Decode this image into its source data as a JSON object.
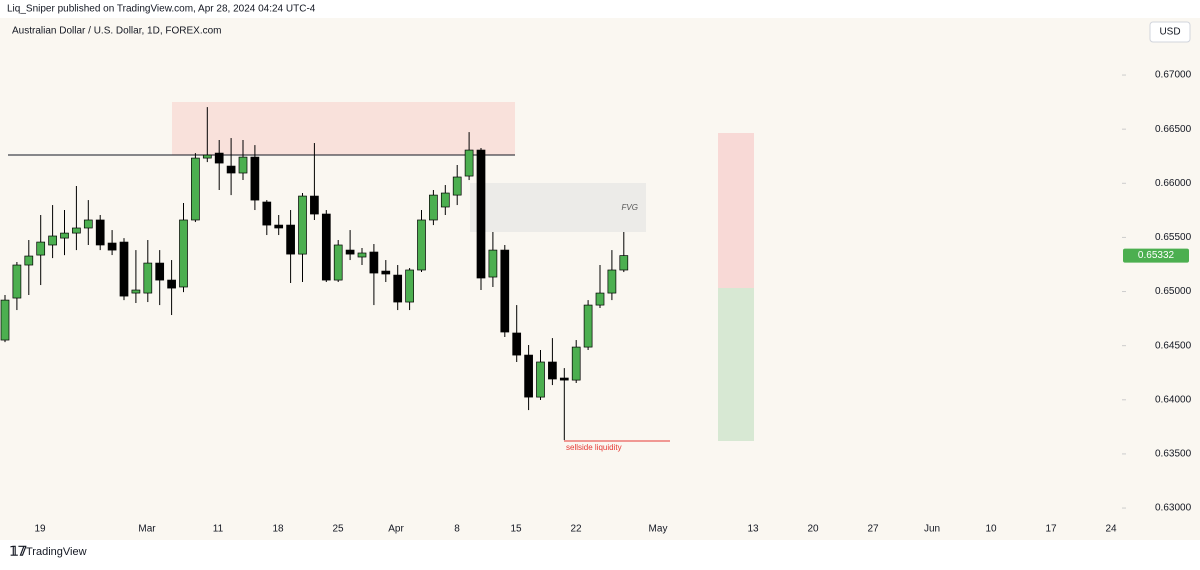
{
  "header": {
    "publisher": "Liq_Sniper published on TradingView.com, Apr 28, 2024 04:24 UTC-4",
    "currency": "USD",
    "brand": "TradingView"
  },
  "chart_data": {
    "type": "candlestick",
    "title": "Australian Dollar / U.S. Dollar, 1D, FOREX.com",
    "open": [
      0.64552,
      0.6494,
      0.65245,
      0.65337,
      0.6543,
      0.65494,
      0.6554,
      0.65587,
      0.65661,
      0.65448,
      0.65457,
      0.64986,
      0.64986,
      0.65263,
      0.65106,
      0.65042,
      0.65661,
      0.66233,
      0.66279,
      0.66159,
      0.66095,
      0.66242,
      0.65827,
      0.65614,
      0.65614,
      0.65346,
      0.65882,
      0.65716,
      0.65106,
      0.65383,
      0.65319,
      0.65365,
      0.65189,
      0.65152,
      0.64903,
      0.65199,
      0.65661,
      0.65781,
      0.65891,
      0.66067,
      0.66307,
      0.65134,
      0.65383,
      0.64617,
      0.64413,
      0.64025,
      0.64349,
      0.64201,
      0.64182,
      0.64487,
      0.64875,
      0.64986,
      0.65199
    ],
    "high": [
      0.64968,
      0.65273,
      0.65476,
      0.65707,
      0.65799,
      0.65753,
      0.65975,
      0.65845,
      0.65707,
      0.65568,
      0.65494,
      0.65383,
      0.65476,
      0.65383,
      0.65291,
      0.65818,
      0.66279,
      0.66704,
      0.664,
      0.66418,
      0.664,
      0.66353,
      0.65845,
      0.65707,
      0.65753,
      0.6591,
      0.66372,
      0.65753,
      0.65476,
      0.65568,
      0.65402,
      0.65439,
      0.65291,
      0.65245,
      0.65217,
      0.65753,
      0.65938,
      0.65984,
      0.66169,
      0.66473,
      0.66326,
      0.6555,
      0.6543,
      0.64875,
      0.64506,
      0.6446,
      0.6457,
      0.64293,
      0.64552,
      0.64921,
      0.65245,
      0.65383,
      0.6555
    ],
    "low": [
      0.64533,
      0.64829,
      0.64968,
      0.6506,
      0.65309,
      0.65337,
      0.65383,
      0.6543,
      0.65383,
      0.65337,
      0.64921,
      0.64894,
      0.64903,
      0.64875,
      0.64783,
      0.64995,
      0.65642,
      0.66196,
      0.65938,
      0.65891,
      0.6603,
      0.65753,
      0.65522,
      0.65522,
      0.65079,
      0.65088,
      0.65661,
      0.65088,
      0.65088,
      0.65291,
      0.65245,
      0.64875,
      0.65088,
      0.64829,
      0.64829,
      0.6518,
      0.65614,
      0.65707,
      0.65799,
      0.6603,
      0.65014,
      0.65042,
      0.6458,
      0.64349,
      0.63905,
      0.63998,
      0.64136,
      0.63628,
      0.64155,
      0.6446,
      0.64848,
      0.64921,
      0.6518
    ],
    "close": [
      0.64921,
      0.65245,
      0.65328,
      0.65457,
      0.65513,
      0.6554,
      0.65587,
      0.65661,
      0.6543,
      0.65383,
      0.64958,
      0.65014,
      0.65263,
      0.65106,
      0.65032,
      0.65661,
      0.66233,
      0.66261,
      0.66187,
      0.66095,
      0.66242,
      0.65845,
      0.65614,
      0.65587,
      0.65346,
      0.65882,
      0.65716,
      0.65106,
      0.6543,
      0.65346,
      0.65356,
      0.65171,
      0.65162,
      0.64903,
      0.65199,
      0.65661,
      0.65891,
      0.6591,
      0.66058,
      0.66307,
      0.65125,
      0.65383,
      0.64626,
      0.64413,
      0.64025,
      0.64349,
      0.64192,
      0.64182,
      0.64487,
      0.64875,
      0.64986,
      0.65199,
      0.65332
    ],
    "up_color": "#4caf50",
    "down_color": "#000000",
    "ylim": [
      0.62908,
      0.67527
    ],
    "yticks": [
      {
        "value": 0.67,
        "label": "0.67000"
      },
      {
        "value": 0.665,
        "label": "0.66500"
      },
      {
        "value": 0.66,
        "label": "0.66000"
      },
      {
        "value": 0.655,
        "label": "0.65500"
      },
      {
        "value": 0.65,
        "label": "0.65000"
      },
      {
        "value": 0.645,
        "label": "0.64500"
      },
      {
        "value": 0.64,
        "label": "0.64000"
      },
      {
        "value": 0.635,
        "label": "0.63500"
      },
      {
        "value": 0.63,
        "label": "0.63000"
      }
    ],
    "xticks": [
      "19",
      "Mar",
      "11",
      "18",
      "25",
      "Apr",
      "8",
      "15",
      "22",
      "May",
      "13",
      "20",
      "27",
      "Jun",
      "10",
      "17",
      "24"
    ],
    "annotations": {
      "fvg": "FVG",
      "liquidity": "sellside liquidity"
    }
  }
}
